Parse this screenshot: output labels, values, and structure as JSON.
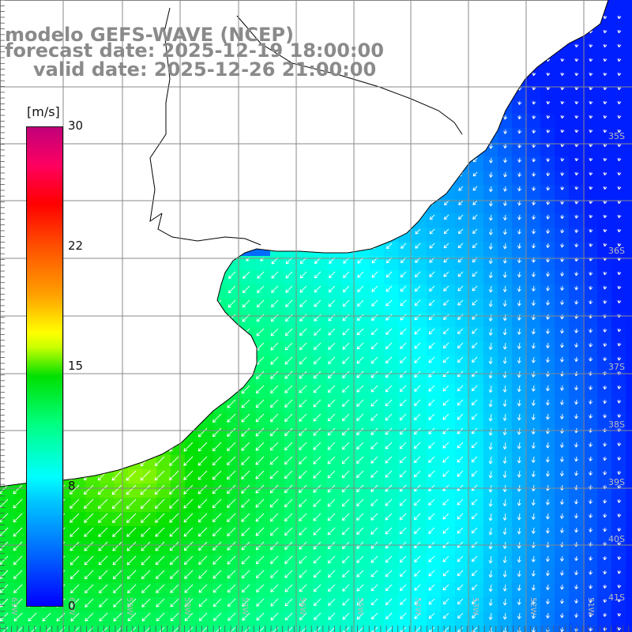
{
  "title": {
    "line1": "modelo GEFS-WAVE (NCEP)",
    "line2": "forecast date: 2025-12-19 18:00:00",
    "line3": "valid date: 2025-12-26 21:00:00"
  },
  "colorbar": {
    "unit": "[m/s]",
    "min": 0,
    "max": 30,
    "ticks": [
      "30",
      "22",
      "15",
      "8",
      "0"
    ]
  },
  "lat_labels": [
    "35S",
    "36S",
    "37S",
    "38S",
    "39S",
    "40S",
    "41S"
  ],
  "lon_labels": [
    "61W",
    "60W",
    "59W",
    "58W",
    "57W",
    "56W",
    "55W",
    "54W",
    "53W",
    "52W",
    "51W"
  ],
  "colors": {
    "land": "#ffffff",
    "grid": "#888888",
    "coast": "#000000",
    "arrows": "#ffffff",
    "title": "#8a8a8a"
  },
  "variable": "wind speed with direction arrows"
}
